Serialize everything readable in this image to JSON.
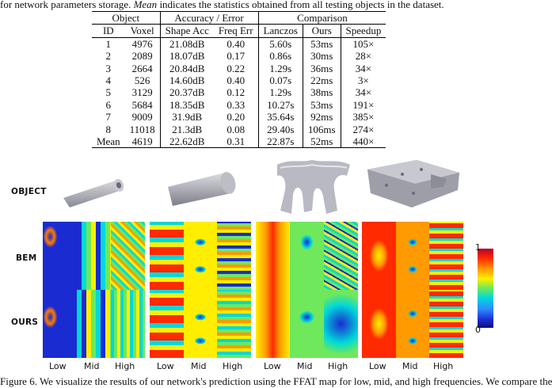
{
  "caption_top": {
    "pre": "for network parameters storage. ",
    "em": "Mean",
    "post": " indicates the statistics obtained from all testing objects in the dataset."
  },
  "table": {
    "groups": [
      "Object",
      "Accuracy / Error",
      "Comparison"
    ],
    "columns": [
      "ID",
      "Voxel",
      "Shape Acc",
      "Freq Err",
      "Lanczos",
      "Ours",
      "Speedup"
    ],
    "rows": [
      [
        "1",
        "4976",
        "21.08dB",
        "0.40",
        "5.60s",
        "53ms",
        "105×"
      ],
      [
        "2",
        "2089",
        "18.07dB",
        "0.17",
        "0.86s",
        "30ms",
        "28×"
      ],
      [
        "3",
        "2664",
        "20.84dB",
        "0.22",
        "1.29s",
        "36ms",
        "34×"
      ],
      [
        "4",
        "526",
        "14.60dB",
        "0.40",
        "0.07s",
        "22ms",
        "3×"
      ],
      [
        "5",
        "3129",
        "20.37dB",
        "0.12",
        "1.29s",
        "38ms",
        "34×"
      ],
      [
        "6",
        "5684",
        "18.35dB",
        "0.33",
        "10.27s",
        "53ms",
        "191×"
      ],
      [
        "7",
        "9009",
        "31.9dB",
        "0.20",
        "35.64s",
        "92ms",
        "385×"
      ],
      [
        "8",
        "11018",
        "21.3dB",
        "0.08",
        "29.40s",
        "106ms",
        "274×"
      ],
      [
        "Mean",
        "4619",
        "22.62dB",
        "0.31",
        "22.87s",
        "52ms",
        "440×"
      ]
    ]
  },
  "figure": {
    "row_labels": {
      "object": "OBJECT",
      "bem": "BEM",
      "ours": "OURS"
    },
    "freq_labels": [
      "Low",
      "Mid",
      "High"
    ],
    "colorbar": {
      "max": "1",
      "min": "0"
    }
  },
  "caption_bottom": "Figure 6. We visualize the results of our network's prediction using the FFAT map for low, mid, and high frequencies. We compare the"
}
